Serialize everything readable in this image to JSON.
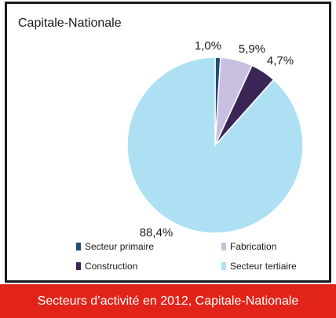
{
  "chart_data": {
    "type": "pie",
    "title": "Capitale-Nationale",
    "slices": [
      {
        "label": "Secteur primaire",
        "value": 1.0,
        "value_label": "1,0%",
        "color": "#1f4e79"
      },
      {
        "label": "Fabrication",
        "value": 5.9,
        "value_label": "5,9%",
        "color": "#c9bfe0"
      },
      {
        "label": "Construction",
        "value": 4.7,
        "value_label": "4,7%",
        "color": "#3b2456"
      },
      {
        "label": "Secteur tertiaire",
        "value": 88.4,
        "value_label": "88,4%",
        "color": "#aee0f4"
      }
    ],
    "legend_placement": "bottom"
  },
  "caption": "Secteurs d’activité en 2012, Capitale-Nationale"
}
